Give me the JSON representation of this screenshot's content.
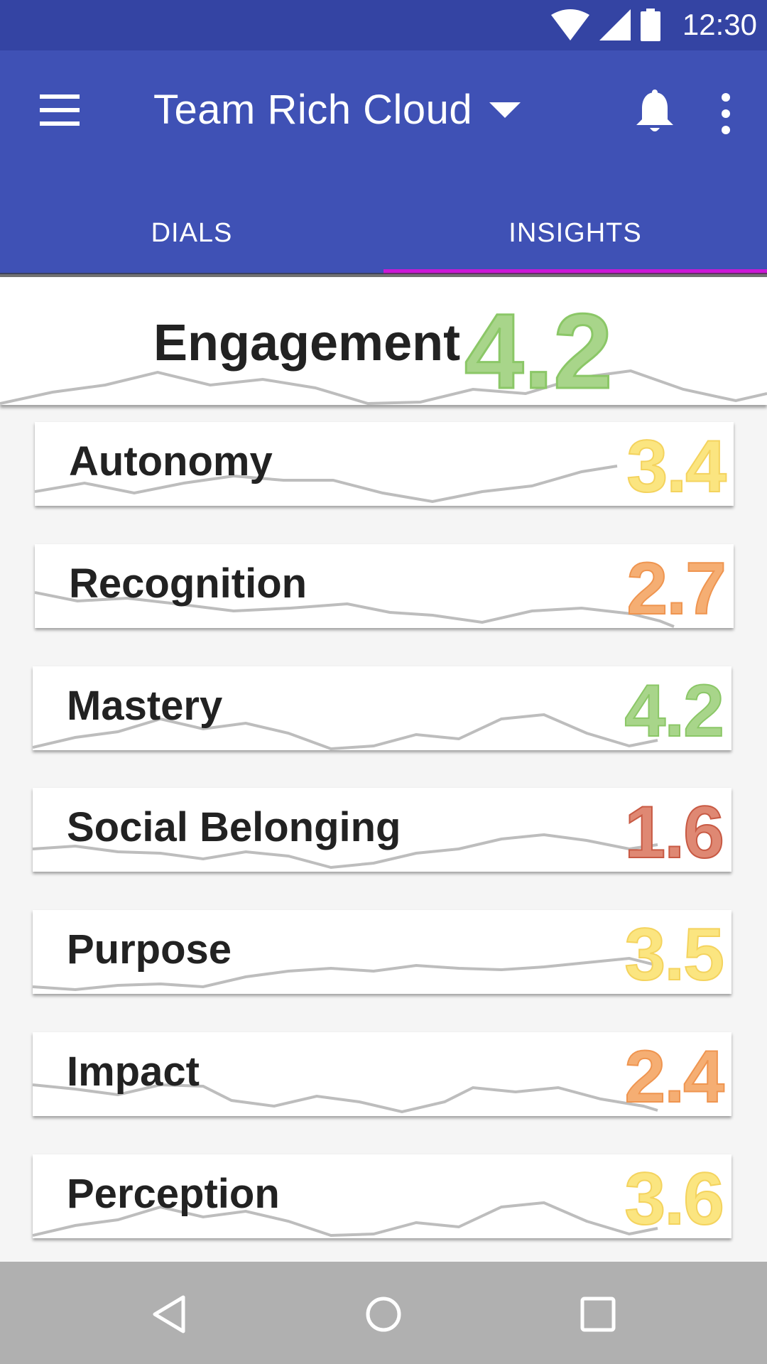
{
  "status": {
    "time": "12:30"
  },
  "appbar": {
    "title": "Team Rich Cloud"
  },
  "tabs": [
    {
      "label": "DIALS",
      "active": false
    },
    {
      "label": "INSIGHTS",
      "active": true
    }
  ],
  "colors": {
    "appbar": "#3f51b5",
    "statusbar": "#3444a3",
    "tab_indicator": "#cc17d6",
    "score_green": "#a8d58a",
    "score_yellow": "#fbe580",
    "score_orange": "#f5ae73",
    "score_red": "#df8873"
  },
  "engagement": {
    "label": "Engagement",
    "score": "4.2",
    "level": "green"
  },
  "metrics": [
    {
      "label": "Autonomy",
      "score": "3.4",
      "level": "yellow"
    },
    {
      "label": "Recognition",
      "score": "2.7",
      "level": "orange"
    },
    {
      "label": "Mastery",
      "score": "4.2",
      "level": "green"
    },
    {
      "label": "Social Belonging",
      "score": "1.6",
      "level": "red"
    },
    {
      "label": "Purpose",
      "score": "3.5",
      "level": "yellow"
    },
    {
      "label": "Impact",
      "score": "2.4",
      "level": "orange"
    },
    {
      "label": "Perception",
      "score": "3.6",
      "level": "yellow"
    }
  ],
  "navbar": {
    "icons": [
      "back-icon",
      "home-icon",
      "recents-icon"
    ]
  }
}
